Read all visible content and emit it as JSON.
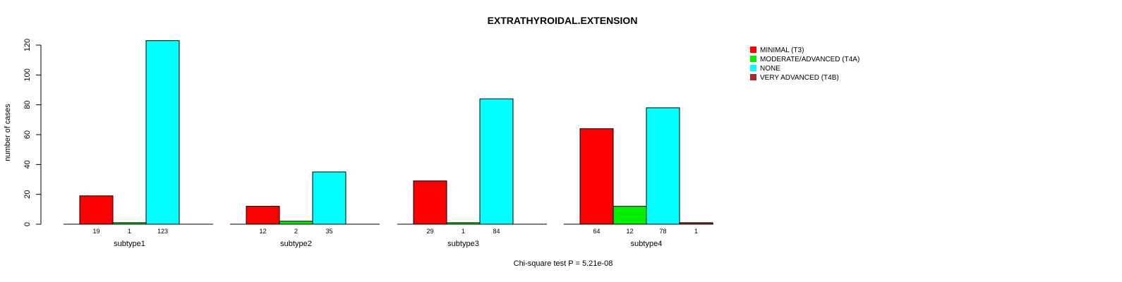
{
  "chart_data": {
    "type": "bar",
    "title": "EXTRATHYROIDAL.EXTENSION",
    "ylabel": "number of cases",
    "ylim": [
      0,
      120
    ],
    "yticks": [
      0,
      20,
      40,
      60,
      80,
      100,
      120
    ],
    "groups": [
      "subtype1",
      "subtype2",
      "subtype3",
      "subtype4"
    ],
    "series": [
      {
        "name": "MINIMAL (T3)",
        "color": "#ff0000",
        "values": [
          19,
          12,
          29,
          64
        ]
      },
      {
        "name": "MODERATE/ADVANCED (T4A)",
        "color": "#00ee00",
        "values": [
          1,
          2,
          1,
          12
        ]
      },
      {
        "name": "NONE",
        "color": "#00ffff",
        "values": [
          123,
          35,
          84,
          78
        ]
      },
      {
        "name": "VERY ADVANCED (T4B)",
        "color": "#a52a2a",
        "values": [
          null,
          null,
          null,
          1
        ]
      }
    ],
    "footer": "Chi-square test P = 5.21e-08"
  }
}
